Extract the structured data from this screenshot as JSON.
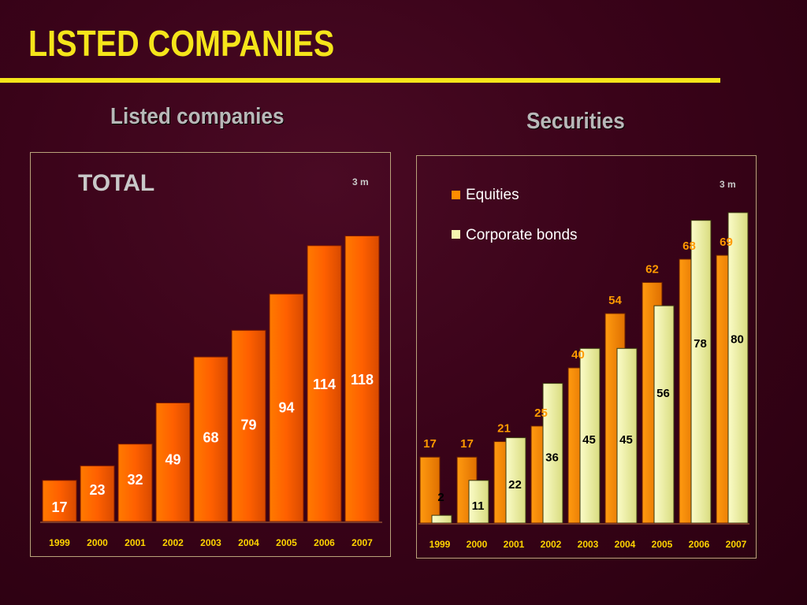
{
  "title": "LISTED COMPANIES",
  "chart_data": [
    {
      "type": "bar",
      "title": "Listed companies",
      "subtitle": "TOTAL",
      "period_note": "3 m",
      "categories": [
        "1999",
        "2000",
        "2001",
        "2002",
        "2003",
        "2004",
        "2005",
        "2006",
        "2007"
      ],
      "series": [
        {
          "values": [
            17,
            23,
            32,
            49,
            68,
            79,
            94,
            114,
            118
          ]
        }
      ],
      "ylim": [
        0,
        125
      ],
      "colors": {
        "bar": "#ff6600",
        "label": "#ffffff",
        "tick": "#ffd400"
      },
      "grid": false
    },
    {
      "type": "bar",
      "title": "Securities",
      "period_note": "3 m",
      "categories": [
        "1999",
        "2000",
        "2001",
        "2002",
        "2003",
        "2004",
        "2005",
        "2006",
        "2007"
      ],
      "series": [
        {
          "name": "Equities",
          "values": [
            17,
            17,
            21,
            25,
            40,
            54,
            62,
            68,
            69
          ],
          "color": "#ff8c00",
          "label_color": "#ff9900"
        },
        {
          "name": "Corporate bonds",
          "values": [
            2,
            11,
            22,
            36,
            45,
            45,
            56,
            78,
            80
          ],
          "color": "#f4f5b0",
          "label_color": "#000000"
        }
      ],
      "legend": "top-left",
      "ylim": [
        0,
        82
      ],
      "grid": false
    }
  ]
}
